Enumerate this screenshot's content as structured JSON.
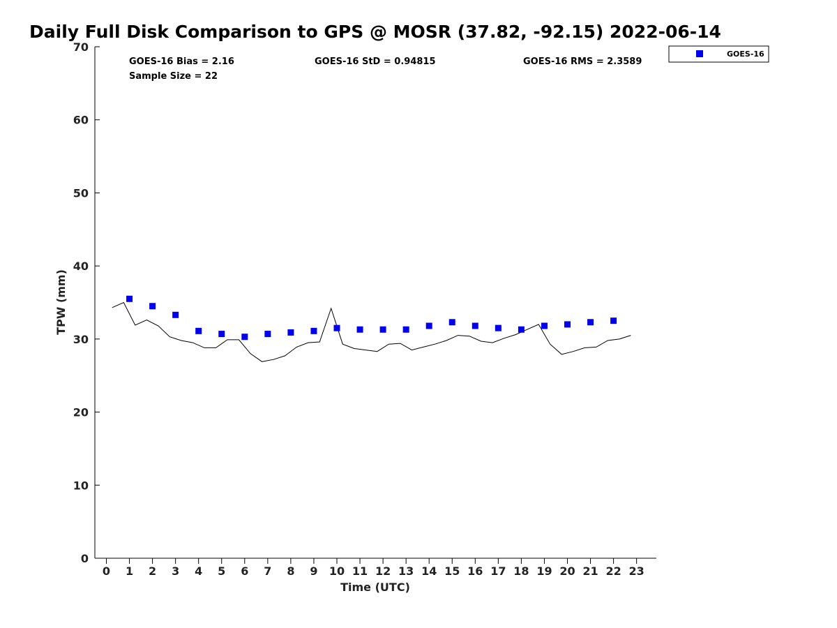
{
  "chart_data": {
    "type": "scatter",
    "title": "Daily Full Disk Comparison to GPS @ MOSR (37.82, -92.15) 2022-06-14",
    "xlabel": "Time (UTC)",
    "ylabel": "TPW (mm)",
    "xlim": [
      -0.5,
      23.8
    ],
    "ylim": [
      0,
      70
    ],
    "x_ticks": [
      0,
      1,
      2,
      3,
      4,
      5,
      6,
      7,
      8,
      9,
      10,
      11,
      12,
      13,
      14,
      15,
      16,
      17,
      18,
      19,
      20,
      21,
      22,
      23
    ],
    "y_ticks": [
      0,
      10,
      20,
      30,
      40,
      50,
      60,
      70
    ],
    "grid": false,
    "legend_position": "top-right, outside plot",
    "stats": {
      "bias": "GOES-16 Bias = 2.16",
      "sample": "Sample Size = 22",
      "std": "GOES-16 StD = 0.94815",
      "rms": "GOES-16 RMS = 2.3589"
    },
    "series": [
      {
        "name": "GOES-16",
        "marker": "square",
        "color": "#0000ee",
        "x": [
          1,
          2,
          3,
          4,
          5,
          6,
          7,
          8,
          9,
          10,
          11,
          12,
          13,
          14,
          15,
          16,
          17,
          18,
          19,
          20,
          21,
          22
        ],
        "y": [
          35.5,
          34.5,
          33.3,
          31.1,
          30.7,
          30.3,
          30.7,
          30.9,
          31.1,
          31.5,
          31.3,
          31.3,
          31.3,
          31.8,
          32.3,
          31.8,
          31.5,
          31.3,
          31.8,
          32.0,
          32.3,
          32.5
        ]
      },
      {
        "marker": "line",
        "color": "#000000",
        "x": [
          0.25,
          0.75,
          1.25,
          1.75,
          2.25,
          2.75,
          3.25,
          3.75,
          4.25,
          4.75,
          5.25,
          5.75,
          6.25,
          6.75,
          7.25,
          7.75,
          8.25,
          8.75,
          9.25,
          9.75,
          10.25,
          10.75,
          11.25,
          11.75,
          12.25,
          12.75,
          13.25,
          13.75,
          14.25,
          14.75,
          15.25,
          15.75,
          16.25,
          16.75,
          17.25,
          17.75,
          18.25,
          18.75,
          19.25,
          19.75,
          20.25,
          20.75,
          21.25,
          21.75,
          22.25,
          22.75
        ],
        "y": [
          34.3,
          35.0,
          31.9,
          32.6,
          31.8,
          30.3,
          29.8,
          29.5,
          28.8,
          28.8,
          29.9,
          29.9,
          28.0,
          26.9,
          27.2,
          27.7,
          28.9,
          29.5,
          29.6,
          34.2,
          29.3,
          28.7,
          28.5,
          28.3,
          29.3,
          29.4,
          28.5,
          28.9,
          29.3,
          29.8,
          30.5,
          30.4,
          29.7,
          29.5,
          30.1,
          30.6,
          31.3,
          32.0,
          29.3,
          27.9,
          28.3,
          28.8,
          28.9,
          29.8,
          30.0,
          30.5
        ]
      }
    ]
  }
}
